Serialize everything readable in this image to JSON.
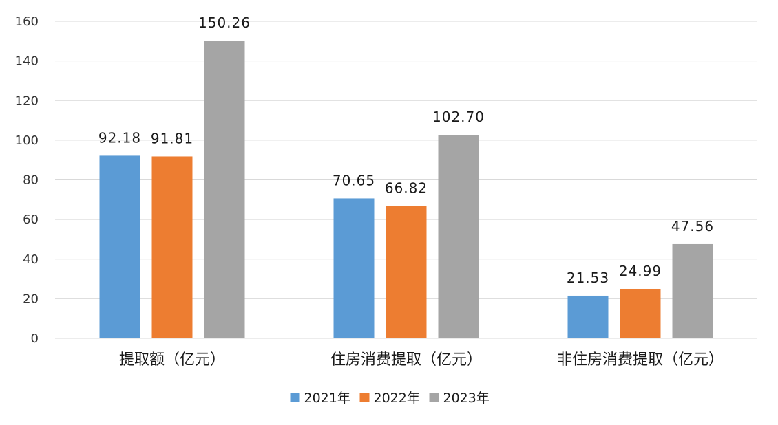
{
  "chart_data": {
    "type": "bar",
    "title": "",
    "xlabel": "",
    "ylabel": "",
    "categories": [
      "提取额（亿元）",
      "住房消费提取（亿元）",
      "非住房消费提取（亿元）"
    ],
    "series": [
      {
        "name": "2021年",
        "values": [
          92.18,
          70.65,
          21.53
        ],
        "labels": [
          "92.18",
          "70.65",
          "21.53"
        ],
        "color": "#5B9BD5"
      },
      {
        "name": "2022年",
        "values": [
          91.81,
          66.82,
          24.99
        ],
        "labels": [
          "91.81",
          "66.82",
          "24.99"
        ],
        "color": "#ED7D31"
      },
      {
        "name": "2023年",
        "values": [
          150.26,
          102.7,
          47.56
        ],
        "labels": [
          "150.26",
          "102.70",
          "47.56"
        ],
        "color": "#A5A5A5"
      }
    ],
    "ylim": [
      0,
      160
    ],
    "yticks": [
      "0",
      "20",
      "40",
      "60",
      "80",
      "100",
      "120",
      "140",
      "160"
    ],
    "grid": true,
    "legend": "bottom-center"
  }
}
